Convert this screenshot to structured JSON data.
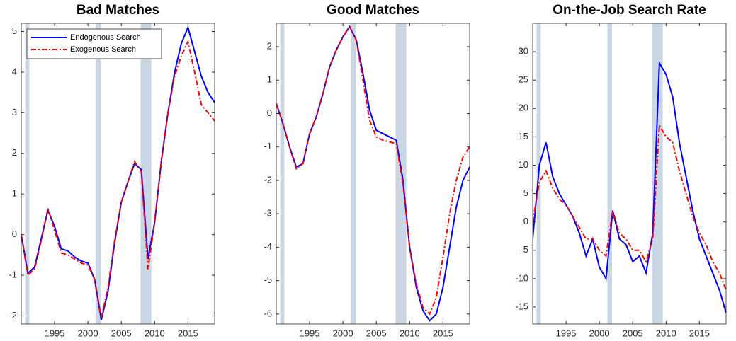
{
  "chart_data": [
    {
      "type": "line",
      "title": "Bad Matches",
      "x": [
        1990,
        1991,
        1992,
        1993,
        1994,
        1995,
        1996,
        1997,
        1998,
        1999,
        2000,
        2001,
        2002,
        2003,
        2004,
        2005,
        2006,
        2007,
        2008,
        2009,
        2010,
        2011,
        2012,
        2013,
        2014,
        2015,
        2016,
        2017,
        2018,
        2019
      ],
      "series": [
        {
          "name": "Endogenous Search",
          "color": "#0000ff",
          "style": "solid",
          "values": [
            0,
            -0.95,
            -0.8,
            -0.1,
            0.6,
            0.2,
            -0.35,
            -0.4,
            -0.55,
            -0.65,
            -0.7,
            -1.1,
            -2.1,
            -1.4,
            -0.2,
            0.8,
            1.3,
            1.75,
            1.6,
            -0.6,
            0.3,
            1.8,
            3.0,
            4.0,
            4.7,
            5.1,
            4.5,
            3.9,
            3.5,
            3.25
          ]
        },
        {
          "name": "Exogenous Search",
          "color": "#ff0000",
          "style": "dashdot",
          "values": [
            0,
            -1.0,
            -0.85,
            -0.15,
            0.65,
            0.1,
            -0.45,
            -0.5,
            -0.6,
            -0.7,
            -0.75,
            -1.1,
            -2.05,
            -1.3,
            -0.15,
            0.8,
            1.3,
            1.8,
            1.55,
            -0.85,
            0.3,
            1.8,
            3.0,
            3.9,
            4.4,
            4.75,
            4.0,
            3.2,
            3.0,
            2.8
          ]
        }
      ],
      "shaded": [
        [
          1990.6,
          1991.2
        ],
        [
          2001.2,
          2001.9
        ],
        [
          2007.9,
          2009.5
        ]
      ],
      "xlim": [
        1990,
        2019
      ],
      "xticks": [
        1995,
        2000,
        2005,
        2010,
        2015
      ],
      "ylim": [
        -2.2,
        5.2
      ],
      "yticks": [
        -2,
        -1,
        0,
        1,
        2,
        3,
        4,
        5
      ],
      "legend": "upper left"
    },
    {
      "type": "line",
      "title": "Good Matches",
      "x": [
        1990,
        1991,
        1992,
        1993,
        1994,
        1995,
        1996,
        1997,
        1998,
        1999,
        2000,
        2001,
        2002,
        2003,
        2004,
        2005,
        2006,
        2007,
        2008,
        2009,
        2010,
        2011,
        2012,
        2013,
        2014,
        2015,
        2016,
        2017,
        2018,
        2019
      ],
      "series": [
        {
          "color": "#0000ff",
          "style": "solid",
          "values": [
            0.3,
            -0.3,
            -1.0,
            -1.6,
            -1.5,
            -0.6,
            -0.1,
            0.6,
            1.4,
            1.9,
            2.3,
            2.6,
            2.2,
            1.2,
            0.1,
            -0.5,
            -0.6,
            -0.7,
            -0.8,
            -2.0,
            -4.0,
            -5.2,
            -5.9,
            -6.2,
            -6.0,
            -5.2,
            -4.0,
            -2.8,
            -2.0,
            -1.6
          ]
        },
        {
          "color": "#ff0000",
          "style": "dashdot",
          "values": [
            0.3,
            -0.3,
            -1.0,
            -1.65,
            -1.5,
            -0.6,
            -0.1,
            0.6,
            1.4,
            1.9,
            2.3,
            2.6,
            2.2,
            1.0,
            -0.2,
            -0.7,
            -0.8,
            -0.85,
            -0.9,
            -2.1,
            -4.0,
            -5.1,
            -5.8,
            -6.0,
            -5.5,
            -4.3,
            -3.0,
            -2.0,
            -1.3,
            -1.0
          ]
        }
      ],
      "shaded": [
        [
          1990.6,
          1991.2
        ],
        [
          2001.2,
          2001.9
        ],
        [
          2007.9,
          2009.5
        ]
      ],
      "xlim": [
        1990,
        2019
      ],
      "xticks": [
        1995,
        2000,
        2005,
        2010,
        2015
      ],
      "ylim": [
        -6.3,
        2.7
      ],
      "yticks": [
        -6,
        -5,
        -4,
        -3,
        -2,
        -1,
        0,
        1,
        2
      ]
    },
    {
      "type": "line",
      "title": "On-the-Job Search Rate",
      "x": [
        1990,
        1991,
        1992,
        1993,
        1994,
        1995,
        1996,
        1997,
        1998,
        1999,
        2000,
        2001,
        2002,
        2003,
        2004,
        2005,
        2006,
        2007,
        2008,
        2009,
        2010,
        2011,
        2012,
        2013,
        2014,
        2015,
        2016,
        2017,
        2018,
        2019
      ],
      "series": [
        {
          "color": "#0000ff",
          "style": "solid",
          "values": [
            -3,
            10,
            14,
            8,
            5,
            3,
            1,
            -2,
            -6,
            -3,
            -8,
            -10,
            2,
            -3,
            -4,
            -7,
            -6,
            -9,
            -2,
            28,
            26,
            22,
            14,
            8,
            2,
            -3,
            -6,
            -9,
            -12,
            -16
          ]
        },
        {
          "color": "#ff0000",
          "style": "dashdot",
          "values": [
            0,
            7,
            9,
            6,
            4,
            3,
            1,
            -1,
            -3,
            -3,
            -5,
            -6,
            2,
            -2,
            -3,
            -5,
            -5,
            -7,
            -3,
            17,
            15,
            14,
            9,
            5,
            1,
            -2,
            -4,
            -7,
            -9,
            -12
          ]
        }
      ],
      "shaded": [
        [
          1990.6,
          1991.2
        ],
        [
          2001.2,
          2001.9
        ],
        [
          2007.9,
          2009.5
        ]
      ],
      "xlim": [
        1990,
        2019
      ],
      "xticks": [
        1995,
        2000,
        2005,
        2010,
        2015
      ],
      "ylim": [
        -18,
        35
      ],
      "yticks": [
        -15,
        -10,
        -5,
        0,
        5,
        10,
        15,
        20,
        25,
        30
      ]
    }
  ]
}
